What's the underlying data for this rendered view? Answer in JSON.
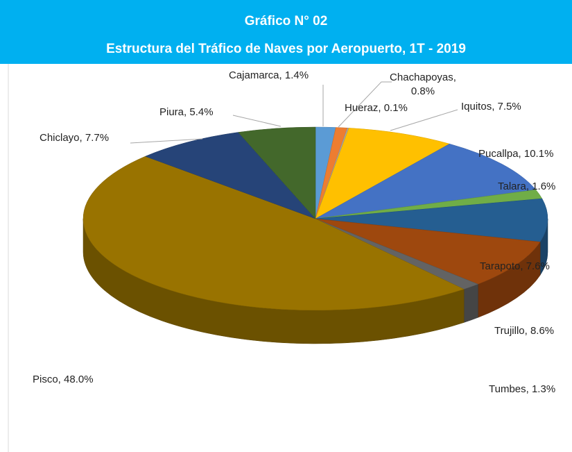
{
  "chart_data": {
    "type": "pie",
    "title": "Gráfico N° 02",
    "subtitle": "Estructura del Tráfico de Naves por Aeropuerto, 1T - 2019",
    "values": [
      1.4,
      0.8,
      0.1,
      7.5,
      10.1,
      1.6,
      7.6,
      8.6,
      1.3,
      48.0,
      7.7,
      5.4
    ],
    "value_labels": [
      "Cajamarca, 1.4%",
      "Chachapoyas, 0.8%",
      "Hueraz, 0.1%",
      "Iquitos, 7.5%",
      "Pucallpa, 10.1%",
      "Talara, 1.6%",
      "Tarapoto, 7.6%",
      "Trujillo, 8.6%",
      "Tumbes, 1.3%",
      "Pisco, 48.0%",
      "Chiclayo, 7.7%",
      "Piura, 5.4%"
    ],
    "colors": [
      "#5b9bd5",
      "#ed7d31",
      "#a5a5a5",
      "#ffc000",
      "#4472c4",
      "#70ad47",
      "#255e91",
      "#9e480e",
      "#636363",
      "#997300",
      "#264478",
      "#43682b"
    ]
  }
}
